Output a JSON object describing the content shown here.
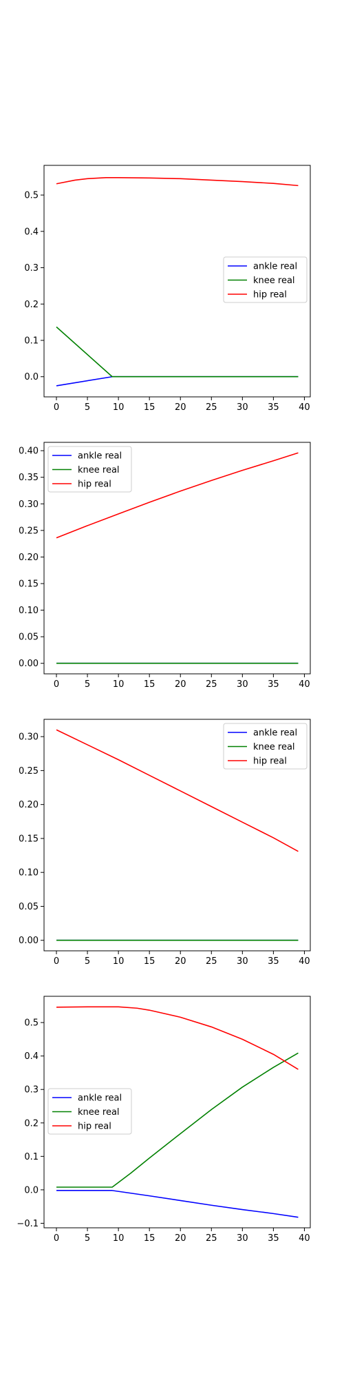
{
  "chart_data": [
    {
      "type": "line",
      "xlim": [
        -2,
        40.95
      ],
      "ylim": [
        -0.0555,
        0.5817
      ],
      "xticks": [
        0,
        5,
        10,
        15,
        20,
        25,
        30,
        35,
        40
      ],
      "yticks": [
        0.0,
        0.1,
        0.2,
        0.3,
        0.4,
        0.5
      ],
      "ytick_labels": [
        "0.0",
        "0.1",
        "0.2",
        "0.3",
        "0.4",
        "0.5"
      ],
      "legend_position": "center-right",
      "grid": false,
      "series": [
        {
          "name": "ankle real",
          "color": "#0000ff",
          "x": [
            0,
            9,
            39
          ],
          "y": [
            -0.025,
            0.0,
            0.0
          ]
        },
        {
          "name": "knee real",
          "color": "#008000",
          "x": [
            0,
            9,
            39
          ],
          "y": [
            0.137,
            0.0,
            0.0
          ]
        },
        {
          "name": "hip real",
          "color": "#ff0000",
          "x": [
            0,
            3,
            5,
            8,
            10,
            15,
            20,
            25,
            30,
            35,
            39
          ],
          "y": [
            0.531,
            0.541,
            0.545,
            0.548,
            0.548,
            0.547,
            0.545,
            0.541,
            0.537,
            0.532,
            0.526
          ]
        }
      ]
    },
    {
      "type": "line",
      "xlim": [
        -2,
        40.95
      ],
      "ylim": [
        -0.0198,
        0.4157
      ],
      "xticks": [
        0,
        5,
        10,
        15,
        20,
        25,
        30,
        35,
        40
      ],
      "yticks": [
        0.0,
        0.05,
        0.1,
        0.15,
        0.2,
        0.25,
        0.3,
        0.35,
        0.4
      ],
      "ytick_labels": [
        "0.00",
        "0.05",
        "0.10",
        "0.15",
        "0.20",
        "0.25",
        "0.30",
        "0.35",
        "0.40"
      ],
      "legend_position": "upper-left",
      "grid": false,
      "series": [
        {
          "name": "ankle real",
          "color": "#0000ff",
          "x": [
            0,
            39
          ],
          "y": [
            0.0,
            0.0
          ]
        },
        {
          "name": "knee real",
          "color": "#008000",
          "x": [
            0,
            39
          ],
          "y": [
            0.0,
            0.0
          ]
        },
        {
          "name": "hip real",
          "color": "#ff0000",
          "x": [
            0,
            5,
            10,
            15,
            20,
            25,
            30,
            35,
            39
          ],
          "y": [
            0.236,
            0.259,
            0.281,
            0.303,
            0.324,
            0.344,
            0.363,
            0.381,
            0.396
          ]
        }
      ]
    },
    {
      "type": "line",
      "xlim": [
        -2,
        40.95
      ],
      "ylim": [
        -0.0155,
        0.3255
      ],
      "xticks": [
        0,
        5,
        10,
        15,
        20,
        25,
        30,
        35,
        40
      ],
      "yticks": [
        0.0,
        0.05,
        0.1,
        0.15,
        0.2,
        0.25,
        0.3
      ],
      "ytick_labels": [
        "0.00",
        "0.05",
        "0.10",
        "0.15",
        "0.20",
        "0.25",
        "0.30"
      ],
      "legend_position": "upper-right",
      "grid": false,
      "series": [
        {
          "name": "ankle real",
          "color": "#0000ff",
          "x": [
            0,
            39
          ],
          "y": [
            0.0,
            0.0
          ]
        },
        {
          "name": "knee real",
          "color": "#008000",
          "x": [
            0,
            39
          ],
          "y": [
            0.0,
            0.0
          ]
        },
        {
          "name": "hip real",
          "color": "#ff0000",
          "x": [
            0,
            5,
            10,
            15,
            20,
            25,
            30,
            35,
            39
          ],
          "y": [
            0.31,
            0.288,
            0.266,
            0.243,
            0.22,
            0.197,
            0.174,
            0.151,
            0.131
          ]
        }
      ]
    },
    {
      "type": "line",
      "xlim": [
        -2,
        40.95
      ],
      "ylim": [
        -0.1135,
        0.5785
      ],
      "xticks": [
        0,
        5,
        10,
        15,
        20,
        25,
        30,
        35,
        40
      ],
      "yticks": [
        -0.1,
        0.0,
        0.1,
        0.2,
        0.3,
        0.4,
        0.5
      ],
      "ytick_labels": [
        "−0.1",
        "0.0",
        "0.1",
        "0.2",
        "0.3",
        "0.4",
        "0.5"
      ],
      "legend_position": "center-left",
      "grid": false,
      "series": [
        {
          "name": "ankle real",
          "color": "#0000ff",
          "x": [
            0,
            9,
            15,
            20,
            25,
            30,
            35,
            39
          ],
          "y": [
            -0.002,
            -0.002,
            -0.018,
            -0.032,
            -0.046,
            -0.059,
            -0.071,
            -0.082
          ]
        },
        {
          "name": "knee real",
          "color": "#008000",
          "x": [
            0,
            9,
            12,
            15,
            20,
            25,
            30,
            35,
            39
          ],
          "y": [
            0.008,
            0.008,
            0.05,
            0.095,
            0.168,
            0.24,
            0.307,
            0.366,
            0.409
          ]
        },
        {
          "name": "hip real",
          "color": "#ff0000",
          "x": [
            0,
            5,
            10,
            13,
            15,
            20,
            25,
            30,
            35,
            39
          ],
          "y": [
            0.546,
            0.547,
            0.547,
            0.543,
            0.537,
            0.516,
            0.487,
            0.45,
            0.405,
            0.36
          ]
        }
      ]
    }
  ]
}
